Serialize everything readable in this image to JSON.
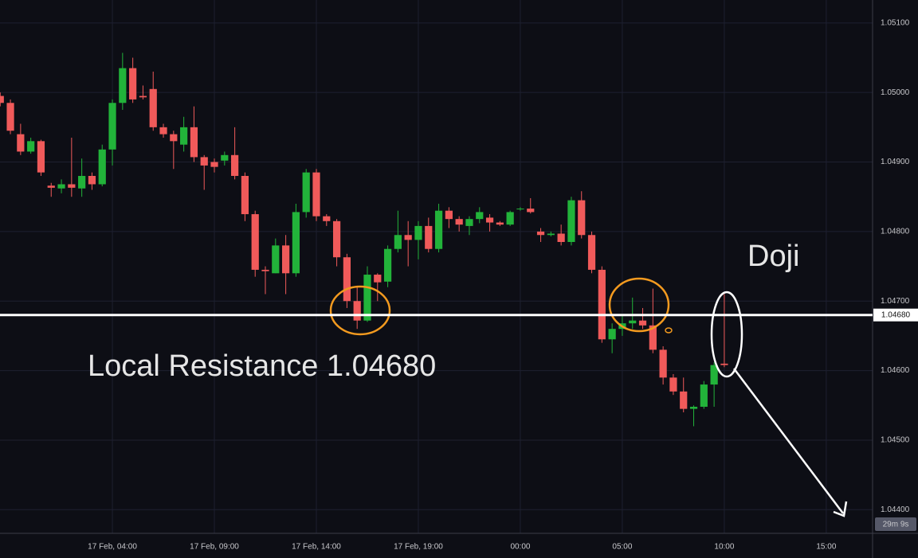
{
  "chart_data": {
    "type": "candlestick",
    "x": [
      -1.5,
      -1,
      -0.5,
      0,
      0.5,
      1,
      1.5,
      2,
      2.5,
      3,
      3.5,
      4,
      4.5,
      5,
      5.5,
      6,
      6.5,
      7,
      7.5,
      8,
      8.5,
      9,
      9.5,
      10,
      10.5,
      11,
      11.5,
      12,
      12.5,
      13,
      13.5,
      14,
      14.5,
      15,
      15.5,
      16,
      16.5,
      17,
      17.5,
      18,
      18.5,
      19,
      19.5,
      20,
      20.5,
      21,
      21.5,
      22,
      22.5,
      23,
      23.5,
      24,
      24.5,
      25,
      25.5,
      26,
      26.5,
      27,
      27.5,
      28,
      28.5,
      29,
      29.5,
      30,
      30.5,
      31,
      31.5,
      32,
      32.5,
      33,
      33.5,
      34
    ],
    "open": [
      1.04995,
      1.04985,
      1.0494,
      1.04915,
      1.0493,
      1.04866,
      1.04862,
      1.04868,
      1.04862,
      1.0488,
      1.04868,
      1.04918,
      1.04985,
      1.05035,
      1.04995,
      1.05005,
      1.0495,
      1.0494,
      1.04925,
      1.0495,
      1.04907,
      1.049,
      1.04902,
      1.0491,
      1.0488,
      1.04825,
      1.04745,
      1.0474,
      1.0478,
      1.0474,
      1.04828,
      1.04885,
      1.04822,
      1.04815,
      1.04763,
      1.047,
      1.04672,
      1.04738,
      1.04728,
      1.04775,
      1.04795,
      1.04788,
      1.04808,
      1.04775,
      1.0483,
      1.04818,
      1.04808,
      1.04818,
      1.0482,
      1.04813,
      1.0481,
      1.04832,
      1.04833,
      1.048,
      1.04795,
      1.04797,
      1.04785,
      1.04845,
      1.04795,
      1.04745,
      1.04645,
      1.0466,
      1.04668,
      1.04672,
      1.04665,
      1.0463,
      1.0459,
      1.0457,
      1.04545,
      1.04548,
      1.0458,
      1.0461
    ],
    "high": [
      1.05,
      1.0499,
      1.04955,
      1.04935,
      1.04932,
      1.0487,
      1.04875,
      1.04935,
      1.04905,
      1.04885,
      1.04925,
      1.0499,
      1.05057,
      1.0505,
      1.0501,
      1.0503,
      1.04955,
      1.04945,
      1.04965,
      1.0498,
      1.0491,
      1.04905,
      1.04915,
      1.0495,
      1.04885,
      1.0483,
      1.0475,
      1.0479,
      1.04795,
      1.0484,
      1.0489,
      1.0489,
      1.04825,
      1.04818,
      1.04768,
      1.0472,
      1.0475,
      1.0474,
      1.0478,
      1.0483,
      1.04815,
      1.04815,
      1.0482,
      1.0484,
      1.04835,
      1.04822,
      1.04822,
      1.04835,
      1.04825,
      1.04815,
      1.0483,
      1.04835,
      1.04848,
      1.04805,
      1.048,
      1.0481,
      1.0485,
      1.04858,
      1.048,
      1.0475,
      1.04668,
      1.0468,
      1.04705,
      1.0469,
      1.04718,
      1.04635,
      1.04595,
      1.0459,
      1.0455,
      1.04585,
      1.04612,
      1.0471
    ],
    "low": [
      1.0498,
      1.0494,
      1.0491,
      1.04912,
      1.0488,
      1.0485,
      1.04855,
      1.0485,
      1.0485,
      1.0486,
      1.04865,
      1.04895,
      1.04975,
      1.04985,
      1.0499,
      1.04945,
      1.04935,
      1.0489,
      1.04915,
      1.049,
      1.0486,
      1.04885,
      1.04895,
      1.04875,
      1.04815,
      1.04735,
      1.0471,
      1.0474,
      1.0471,
      1.04735,
      1.0482,
      1.04815,
      1.04808,
      1.0475,
      1.0469,
      1.0466,
      1.0467,
      1.047,
      1.0472,
      1.0477,
      1.0475,
      1.0476,
      1.0477,
      1.0477,
      1.04805,
      1.048,
      1.04795,
      1.04812,
      1.048,
      1.04808,
      1.04808,
      1.0483,
      1.04826,
      1.04785,
      1.04793,
      1.0478,
      1.0478,
      1.0479,
      1.0474,
      1.0464,
      1.04625,
      1.0465,
      1.0466,
      1.0466,
      1.04625,
      1.0458,
      1.04565,
      1.0454,
      1.0452,
      1.04545,
      1.04548,
      1.04605
    ],
    "close": [
      1.04985,
      1.04945,
      1.04915,
      1.0493,
      1.04885,
      1.04863,
      1.04868,
      1.04863,
      1.0488,
      1.04868,
      1.04918,
      1.04985,
      1.05035,
      1.0499,
      1.04993,
      1.0495,
      1.0494,
      1.0493,
      1.0495,
      1.04907,
      1.04895,
      1.04893,
      1.0491,
      1.0488,
      1.04825,
      1.04745,
      1.04743,
      1.0478,
      1.0474,
      1.04828,
      1.04885,
      1.04822,
      1.04815,
      1.04763,
      1.047,
      1.04672,
      1.04738,
      1.04727,
      1.04775,
      1.04795,
      1.04788,
      1.04808,
      1.04775,
      1.0483,
      1.04818,
      1.0481,
      1.04818,
      1.04828,
      1.04813,
      1.0481,
      1.04828,
      1.04833,
      1.04828,
      1.04795,
      1.04797,
      1.04785,
      1.04845,
      1.04795,
      1.04745,
      1.04645,
      1.0466,
      1.04668,
      1.04672,
      1.04665,
      1.0463,
      1.0459,
      1.0457,
      1.04545,
      1.04548,
      1.0458,
      1.04608,
      1.04608
    ],
    "up_color": "#22b33a",
    "down_color": "#f05a5a",
    "xlim": [
      -1.51,
      41.27
    ],
    "ylim": [
      1.04366,
      1.05133
    ],
    "xticks": [
      {
        "value": 4,
        "label": "17 Feb, 04:00"
      },
      {
        "value": 9,
        "label": "17 Feb, 09:00"
      },
      {
        "value": 14,
        "label": "17 Feb, 14:00"
      },
      {
        "value": 19,
        "label": "17 Feb, 19:00"
      },
      {
        "value": 24,
        "label": "00:00"
      },
      {
        "value": 29,
        "label": "05:00"
      },
      {
        "value": 34,
        "label": "10:00"
      },
      {
        "value": 39,
        "label": "15:00"
      }
    ],
    "yticks": [
      {
        "value": 1.051,
        "label": "1.05100"
      },
      {
        "value": 1.05,
        "label": "1.05000"
      },
      {
        "value": 1.049,
        "label": "1.04900"
      },
      {
        "value": 1.048,
        "label": "1.04800"
      },
      {
        "value": 1.047,
        "label": "1.04700"
      },
      {
        "value": 1.046,
        "label": "1.04600"
      },
      {
        "value": 1.045,
        "label": "1.04500"
      },
      {
        "value": 1.044,
        "label": "1.04400"
      }
    ],
    "grid": true,
    "hline": {
      "value": 1.0468,
      "label": "1.04680"
    },
    "annotations": [
      "Local Resistance 1.04680",
      "Doji"
    ],
    "countdown": "29m 9s"
  }
}
